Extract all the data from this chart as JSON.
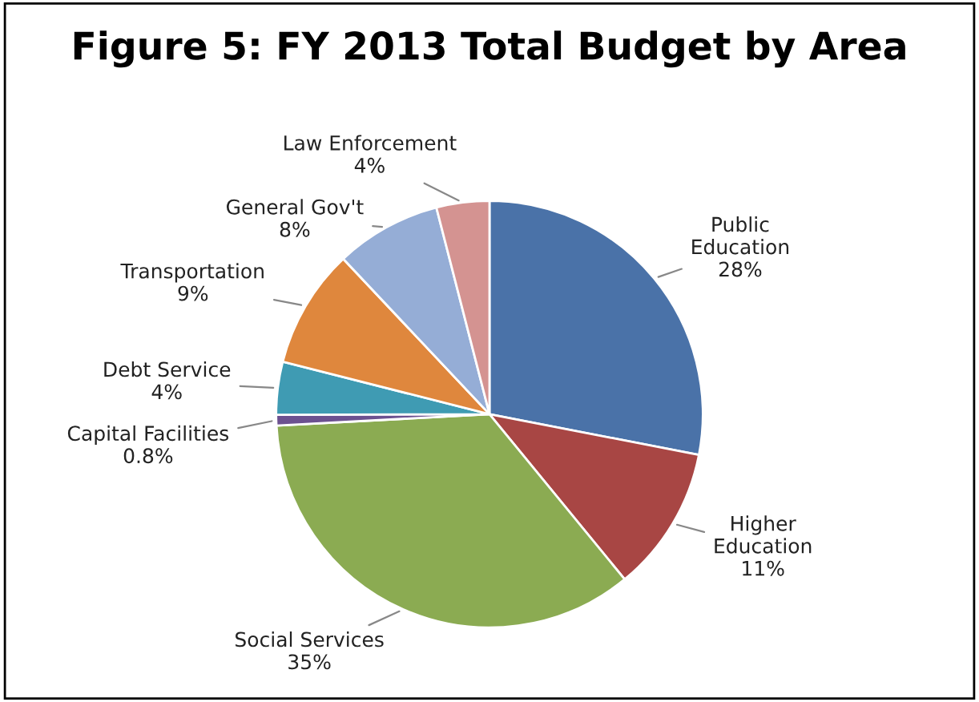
{
  "chart_data": {
    "type": "pie",
    "title": "Figure 5: FY 2013 Total Budget by Area",
    "categories": [
      "Public Education",
      "Higher Education",
      "Social Services",
      "Capital Facilities",
      "Debt Service",
      "Transportation",
      "General Gov't",
      "Law Enforcement"
    ],
    "values": [
      28,
      11,
      35,
      0.8,
      4,
      9,
      8,
      4
    ],
    "value_labels": [
      "28%",
      "11%",
      "35%",
      "0.8%",
      "4%",
      "9%",
      "8%",
      "4%"
    ],
    "colors": [
      "#4a72a8",
      "#a84644",
      "#8bab52",
      "#6c5190",
      "#3f9bb3",
      "#df873d",
      "#95add6",
      "#d49391"
    ]
  }
}
